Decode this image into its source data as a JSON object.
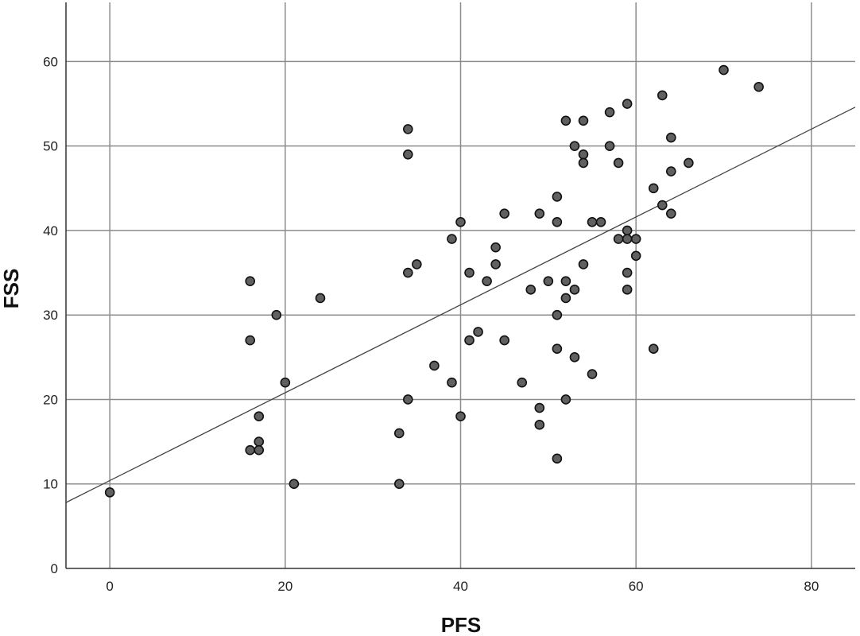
{
  "chart_data": {
    "type": "scatter",
    "title": "",
    "xlabel": "PFS",
    "ylabel": "FSS",
    "xlim": [
      -5,
      85
    ],
    "ylim": [
      0,
      67
    ],
    "xticks": [
      0,
      20,
      40,
      60,
      80
    ],
    "yticks": [
      0,
      10,
      20,
      30,
      40,
      50,
      60
    ],
    "grid": true,
    "point_color": "#606060",
    "line_color": "#444444",
    "fit_line": {
      "intercept": 10.4,
      "slope": 0.52
    },
    "points": [
      {
        "x": 0,
        "y": 9
      },
      {
        "x": 16,
        "y": 34
      },
      {
        "x": 16,
        "y": 27
      },
      {
        "x": 16,
        "y": 14
      },
      {
        "x": 17,
        "y": 18
      },
      {
        "x": 17,
        "y": 15
      },
      {
        "x": 17,
        "y": 14
      },
      {
        "x": 19,
        "y": 30
      },
      {
        "x": 20,
        "y": 22
      },
      {
        "x": 21,
        "y": 10
      },
      {
        "x": 24,
        "y": 32
      },
      {
        "x": 33,
        "y": 16
      },
      {
        "x": 33,
        "y": 10
      },
      {
        "x": 34,
        "y": 52
      },
      {
        "x": 34,
        "y": 49
      },
      {
        "x": 34,
        "y": 35
      },
      {
        "x": 34,
        "y": 20
      },
      {
        "x": 35,
        "y": 36
      },
      {
        "x": 37,
        "y": 24
      },
      {
        "x": 39,
        "y": 39
      },
      {
        "x": 39,
        "y": 22
      },
      {
        "x": 40,
        "y": 41
      },
      {
        "x": 40,
        "y": 18
      },
      {
        "x": 41,
        "y": 35
      },
      {
        "x": 41,
        "y": 27
      },
      {
        "x": 42,
        "y": 28
      },
      {
        "x": 43,
        "y": 34
      },
      {
        "x": 44,
        "y": 38
      },
      {
        "x": 44,
        "y": 36
      },
      {
        "x": 45,
        "y": 42
      },
      {
        "x": 45,
        "y": 27
      },
      {
        "x": 47,
        "y": 22
      },
      {
        "x": 48,
        "y": 33
      },
      {
        "x": 49,
        "y": 42
      },
      {
        "x": 49,
        "y": 19
      },
      {
        "x": 49,
        "y": 17
      },
      {
        "x": 50,
        "y": 34
      },
      {
        "x": 51,
        "y": 44
      },
      {
        "x": 51,
        "y": 41
      },
      {
        "x": 51,
        "y": 30
      },
      {
        "x": 51,
        "y": 26
      },
      {
        "x": 51,
        "y": 13
      },
      {
        "x": 52,
        "y": 53
      },
      {
        "x": 52,
        "y": 34
      },
      {
        "x": 52,
        "y": 32
      },
      {
        "x": 52,
        "y": 20
      },
      {
        "x": 53,
        "y": 50
      },
      {
        "x": 53,
        "y": 33
      },
      {
        "x": 53,
        "y": 25
      },
      {
        "x": 54,
        "y": 53
      },
      {
        "x": 54,
        "y": 49
      },
      {
        "x": 54,
        "y": 48
      },
      {
        "x": 54,
        "y": 36
      },
      {
        "x": 55,
        "y": 41
      },
      {
        "x": 55,
        "y": 23
      },
      {
        "x": 56,
        "y": 41
      },
      {
        "x": 57,
        "y": 54
      },
      {
        "x": 57,
        "y": 50
      },
      {
        "x": 58,
        "y": 48
      },
      {
        "x": 58,
        "y": 39
      },
      {
        "x": 59,
        "y": 55
      },
      {
        "x": 59,
        "y": 40
      },
      {
        "x": 59,
        "y": 39
      },
      {
        "x": 59,
        "y": 35
      },
      {
        "x": 59,
        "y": 33
      },
      {
        "x": 60,
        "y": 39
      },
      {
        "x": 60,
        "y": 37
      },
      {
        "x": 62,
        "y": 45
      },
      {
        "x": 62,
        "y": 26
      },
      {
        "x": 63,
        "y": 56
      },
      {
        "x": 63,
        "y": 43
      },
      {
        "x": 64,
        "y": 51
      },
      {
        "x": 64,
        "y": 47
      },
      {
        "x": 64,
        "y": 42
      },
      {
        "x": 66,
        "y": 48
      },
      {
        "x": 70,
        "y": 59
      },
      {
        "x": 74,
        "y": 57
      }
    ]
  }
}
